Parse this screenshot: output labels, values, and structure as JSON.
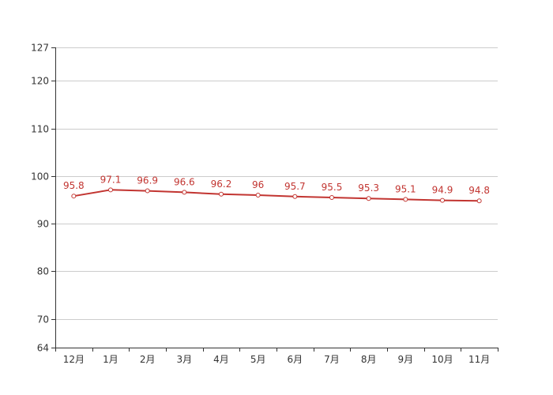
{
  "chart_data": {
    "type": "line",
    "categories": [
      "12月",
      "1月",
      "2月",
      "3月",
      "4月",
      "5月",
      "6月",
      "7月",
      "8月",
      "9月",
      "10月",
      "11月"
    ],
    "series": [
      {
        "values": [
          95.8,
          97.1,
          96.9,
          96.6,
          96.2,
          96,
          95.7,
          95.5,
          95.3,
          95.1,
          94.9,
          94.8
        ],
        "labels": [
          "95.8",
          "97.1",
          "96.9",
          "96.6",
          "96.2",
          "96",
          "95.7",
          "95.5",
          "95.3",
          "95.1",
          "94.9",
          "94.8"
        ]
      }
    ],
    "ylim": [
      64,
      127
    ],
    "yticks": [
      64,
      70,
      80,
      90,
      100,
      110,
      120,
      127
    ],
    "ytick_labels": [
      "64",
      "70",
      "80",
      "90",
      "100",
      "110",
      "120",
      "127"
    ],
    "grid": true,
    "legend": "none",
    "line_color": "#c23531",
    "label_color": "#c23531"
  }
}
